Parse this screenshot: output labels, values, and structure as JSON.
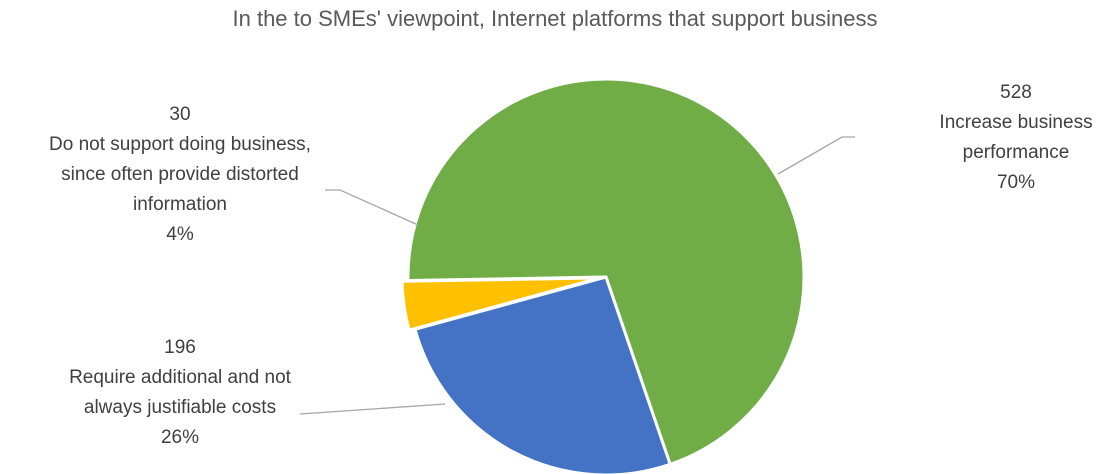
{
  "chart_data": {
    "type": "pie",
    "title": "In the to SMEs' viewpoint, Internet platforms that support business",
    "slices": [
      {
        "value": 528,
        "percent": "70%",
        "label_lines": [
          "Increase business",
          "performance"
        ],
        "color": "#70AD47"
      },
      {
        "value": 196,
        "percent": "26%",
        "label_lines": [
          "Require additional and not",
          "always justifiable costs"
        ],
        "color": "#4472C4"
      },
      {
        "value": 30,
        "percent": "4%",
        "label_lines": [
          "Do not support doing business,",
          "since often provide distorted",
          "information"
        ],
        "color": "#FFC000"
      }
    ],
    "legend": "none"
  }
}
